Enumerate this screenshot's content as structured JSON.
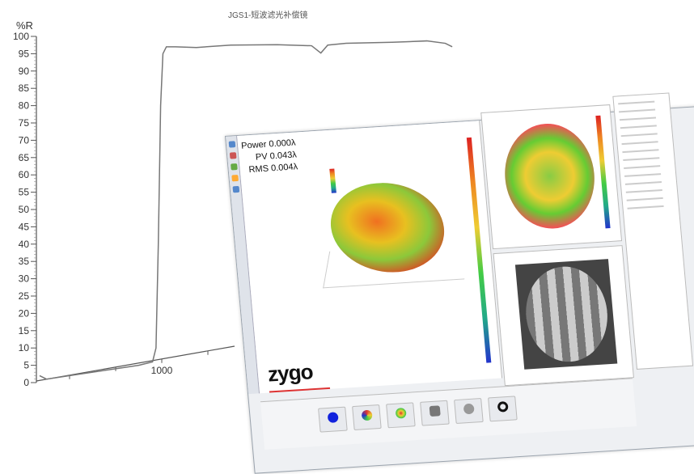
{
  "chart_data": {
    "type": "line",
    "title": "JGS1-短波滤光补偿镜",
    "ylabel": "%R",
    "xlabel": "",
    "ylim": [
      0,
      100
    ],
    "yticks": [
      0,
      5,
      10,
      15,
      20,
      25,
      30,
      35,
      40,
      45,
      50,
      55,
      60,
      65,
      70,
      75,
      80,
      85,
      90,
      95,
      100
    ],
    "xticks": [
      {
        "value": 600,
        "label": ""
      },
      {
        "value": 800,
        "label": ""
      },
      {
        "value": 1000,
        "label": "1000"
      },
      {
        "value": 1200,
        "label": ""
      }
    ],
    "series": [
      {
        "x": [
          470,
          500,
          600,
          700,
          800,
          900,
          960,
          975,
          985,
          995,
          1005,
          1020,
          1060,
          1150,
          1300,
          1500,
          1650,
          1690,
          1720,
          1800,
          2000,
          2150,
          2230,
          2260
        ],
        "y": [
          2,
          1,
          2,
          3,
          4,
          5,
          6,
          10,
          40,
          80,
          95,
          97,
          97,
          96.8,
          97.5,
          97.6,
          97.3,
          95.2,
          97.5,
          98,
          98.3,
          98.7,
          98,
          97
        ]
      }
    ],
    "line_color": "#777777"
  },
  "overlay": {
    "stats": {
      "power": "Power 0.000λ",
      "pv": "PV 0.043λ",
      "rms": "RMS 0.004λ"
    },
    "logo": "zygo",
    "accent": "#dd3333"
  }
}
